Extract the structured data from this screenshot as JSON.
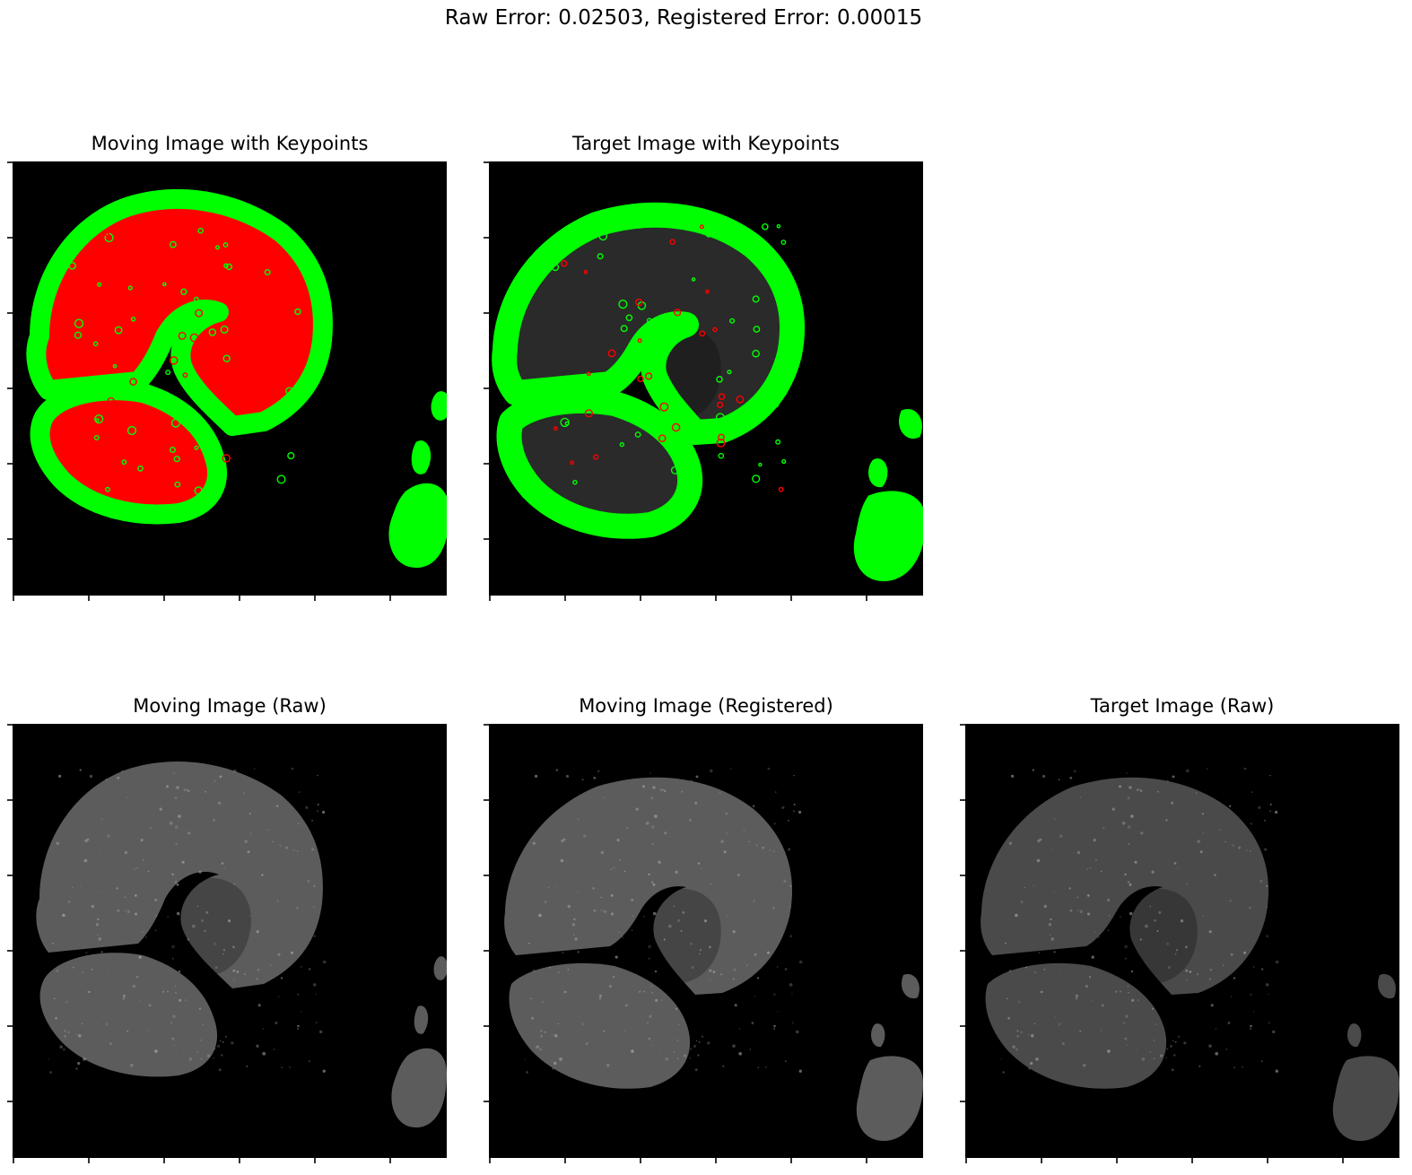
{
  "figure": {
    "suptitle": "Raw Error: 0.02503, Registered Error: 0.00015"
  },
  "panels": [
    {
      "id": "p1",
      "title": "Moving Image with Keypoints",
      "image": "tissue-with-keypoints"
    },
    {
      "id": "p2",
      "title": "Target Image with Keypoints",
      "image": "tissue-with-keypoints"
    },
    {
      "id": "p3",
      "title": "Moving Image (Raw)",
      "image": "grayscale-tissue"
    },
    {
      "id": "p4",
      "title": "Moving Image (Registered)",
      "image": "grayscale-tissue"
    },
    {
      "id": "p5",
      "title": "Target Image (Raw)",
      "image": "grayscale-tissue"
    }
  ],
  "colors": {
    "keypoint_green": "#00ff00",
    "keypoint_red": "#ff0000",
    "tissue_gray": "#5a5a5a",
    "background": "#000000"
  }
}
